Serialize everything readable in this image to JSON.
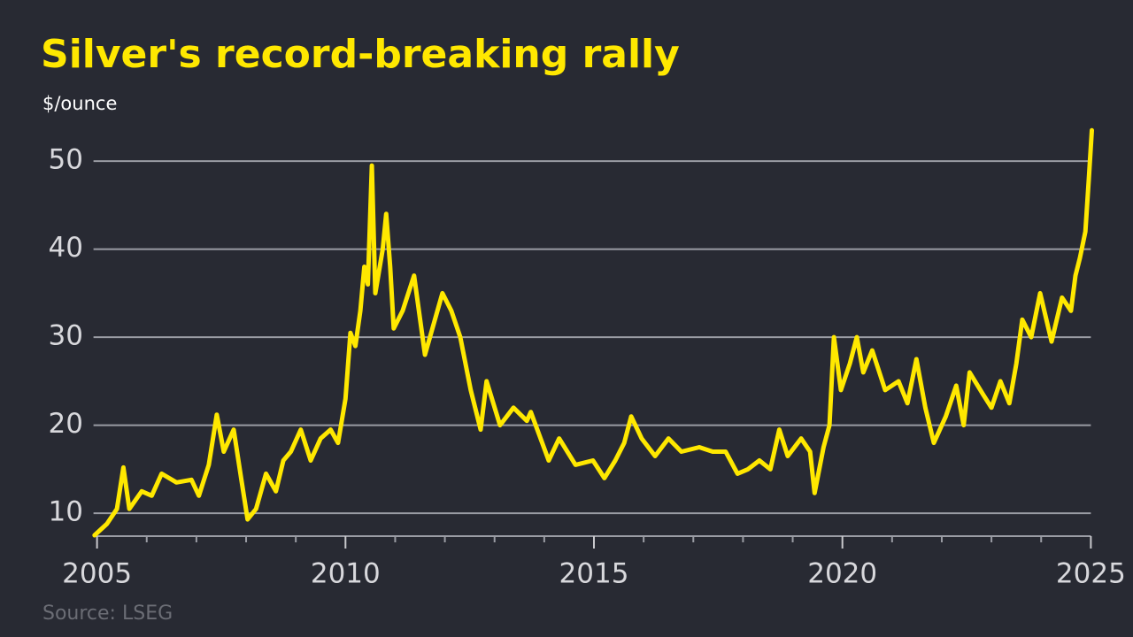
{
  "chart_data": {
    "type": "line",
    "title": "Silver's record-breaking rally",
    "subtitle": "$/ounce",
    "source": "Source: LSEG",
    "color": "#ffe800",
    "grid": true,
    "xlim": [
      2004.9,
      2025.1
    ],
    "ylim": [
      7,
      55
    ],
    "xticks": [
      2005,
      2010,
      2015,
      2020,
      2025
    ],
    "xminorticks": [
      2006,
      2007,
      2008,
      2009,
      2011,
      2012,
      2013,
      2014,
      2016,
      2017,
      2018,
      2019,
      2021,
      2022,
      2023,
      2024
    ],
    "yticks": [
      10,
      20,
      30,
      40,
      50
    ],
    "x": [
      2004.95,
      2005.2,
      2005.4,
      2005.53,
      2005.65,
      2005.9,
      2006.1,
      2006.3,
      2006.6,
      2006.9,
      2007.05,
      2007.25,
      2007.41,
      2007.55,
      2007.75,
      2007.9,
      2008.03,
      2008.2,
      2008.4,
      2008.6,
      2008.75,
      2008.9,
      2009.1,
      2009.3,
      2009.5,
      2009.7,
      2009.85,
      2010.0,
      2010.1,
      2010.2,
      2010.3,
      2010.38,
      2010.45,
      2010.53,
      2010.6,
      2010.75,
      2010.82,
      2010.9,
      2010.97,
      2011.15,
      2011.38,
      2011.6,
      2011.95,
      2012.13,
      2012.31,
      2012.52,
      2012.72,
      2012.84,
      2013.11,
      2013.38,
      2013.65,
      2013.73,
      2014.09,
      2014.3,
      2014.63,
      2014.98,
      2015.21,
      2015.43,
      2015.61,
      2015.75,
      2015.96,
      2016.23,
      2016.5,
      2016.76,
      2017.12,
      2017.39,
      2017.65,
      2017.89,
      2018.1,
      2018.33,
      2018.55,
      2018.73,
      2018.9,
      2019.17,
      2019.35,
      2019.44,
      2019.62,
      2019.74,
      2019.83,
      2019.97,
      2020.15,
      2020.29,
      2020.42,
      2020.6,
      2020.86,
      2021.13,
      2021.31,
      2021.49,
      2021.67,
      2021.84,
      2022.08,
      2022.29,
      2022.44,
      2022.56,
      2022.83,
      2023.0,
      2023.18,
      2023.36,
      2023.5,
      2023.62,
      2023.8,
      2023.98,
      2024.21,
      2024.42,
      2024.6,
      2024.69,
      2024.78,
      2024.89,
      2024.96,
      2025.02
    ],
    "values": [
      7.5,
      8.8,
      10.5,
      15.2,
      10.5,
      12.5,
      12,
      14.5,
      13.5,
      13.8,
      12,
      15.5,
      21.2,
      17,
      19.5,
      14,
      9.3,
      10.5,
      14.5,
      12.5,
      16,
      17,
      19.5,
      16,
      18.5,
      19.5,
      18,
      23,
      30.5,
      29,
      33,
      38,
      36,
      49.5,
      35,
      40,
      44,
      38,
      31,
      33,
      37,
      28,
      35,
      33,
      30,
      24,
      19.5,
      25,
      20,
      22,
      20.5,
      21.5,
      16,
      18.5,
      15.5,
      16,
      14,
      16,
      18,
      21,
      18.5,
      16.5,
      18.5,
      17,
      17.5,
      17,
      17,
      14.5,
      15,
      16,
      15,
      19.5,
      16.5,
      18.5,
      17,
      12.3,
      17.5,
      20,
      30,
      24,
      27,
      30,
      26,
      28.5,
      24,
      25,
      22.5,
      27.5,
      22,
      18,
      21,
      24.5,
      20,
      26,
      23.5,
      22,
      25,
      22.5,
      27,
      32,
      30,
      35,
      29.5,
      34.5,
      33,
      37,
      39,
      42,
      48,
      53.5
    ]
  }
}
